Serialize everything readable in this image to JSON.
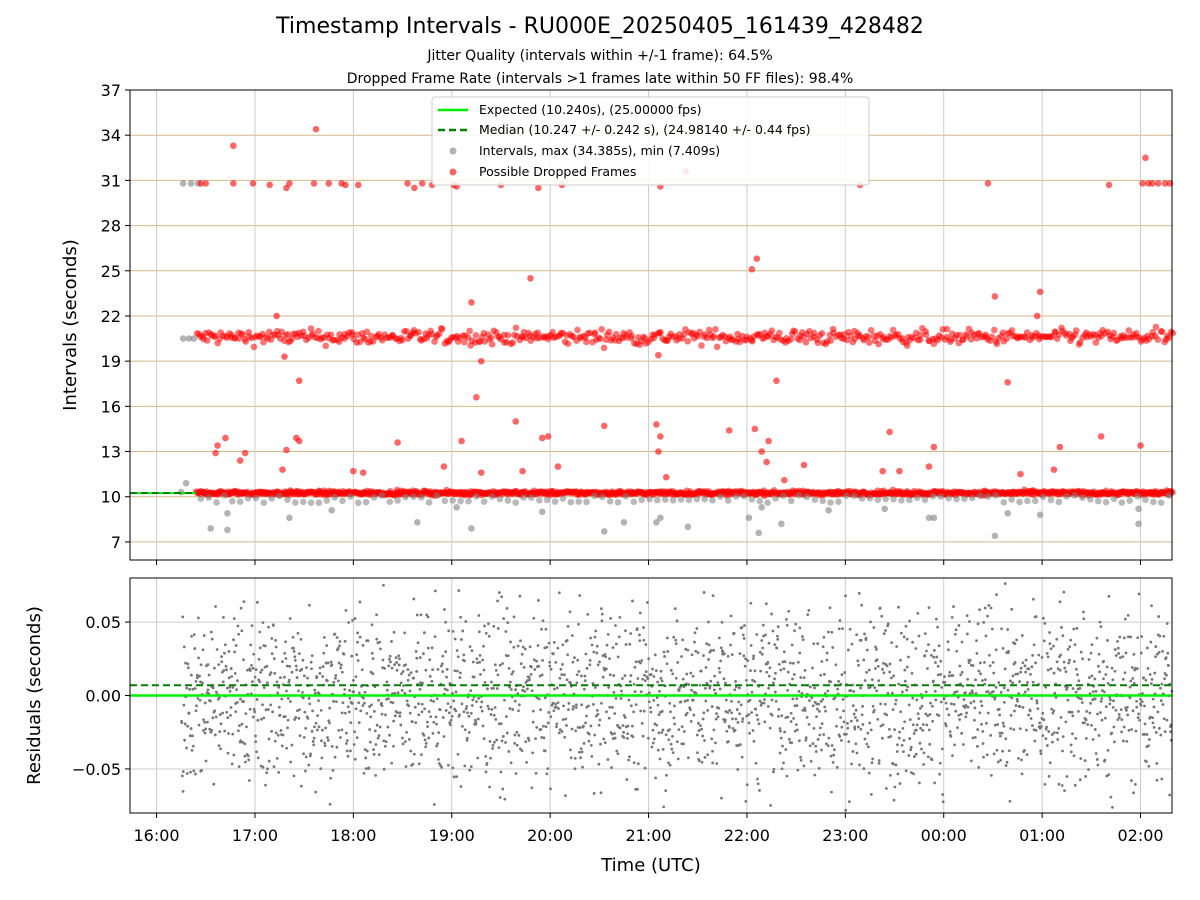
{
  "chart_data": [
    {
      "type": "scatter",
      "title": "Timestamp Intervals - RU000E_20250405_161439_428482",
      "subtitle_lines": [
        "Jitter Quality (intervals within +/-1 frame): 64.5%",
        "Dropped Frame Rate (intervals >1 frames late within 50 FF files): 98.4%"
      ],
      "xlabel": "",
      "ylabel": "Intervals (seconds)",
      "x_range_hours": [
        15.73,
        26.32
      ],
      "ylim": [
        5.8,
        37
      ],
      "yticks": [
        7,
        10,
        13,
        16,
        19,
        22,
        25,
        28,
        31,
        34,
        37
      ],
      "xticks": [
        "16:00",
        "17:00",
        "18:00",
        "19:00",
        "20:00",
        "21:00",
        "22:00",
        "23:00",
        "00:00",
        "01:00",
        "02:00"
      ],
      "grid": "y-lines tan, x-lines gray",
      "legend_position": "top-center",
      "legend": [
        "Expected (10.240s), (25.00000 fps)",
        "Median (10.247 +/- 0.242 s), (24.98140 +/- 0.44 fps)",
        "Intervals, max (34.385s), min (7.409s)",
        "Possible Dropped Frames"
      ],
      "expected_interval": 10.24,
      "median_interval": 10.247,
      "series": [
        {
          "name": "Intervals, max (34.385s), min (7.409s)",
          "color": "#808080",
          "points": [
            [
              16.27,
              30.8
            ],
            [
              16.35,
              30.8
            ],
            [
              16.42,
              30.8
            ],
            [
              16.27,
              20.5
            ],
            [
              16.33,
              20.5
            ],
            [
              16.38,
              20.5
            ],
            [
              16.25,
              10.3
            ],
            [
              16.3,
              10.9
            ],
            [
              16.55,
              7.9
            ],
            [
              16.72,
              7.8
            ],
            [
              16.72,
              8.9
            ],
            [
              17.35,
              8.6
            ],
            [
              17.78,
              9.1
            ],
            [
              18.65,
              8.3
            ],
            [
              19.2,
              7.9
            ],
            [
              19.05,
              9.3
            ],
            [
              19.92,
              9.0
            ],
            [
              20.55,
              7.7
            ],
            [
              20.75,
              8.3
            ],
            [
              21.08,
              8.3
            ],
            [
              21.12,
              8.6
            ],
            [
              21.4,
              8.0
            ],
            [
              22.02,
              8.6
            ],
            [
              22.12,
              7.6
            ],
            [
              22.15,
              9.3
            ],
            [
              22.35,
              8.2
            ],
            [
              22.83,
              9.1
            ],
            [
              23.4,
              9.2
            ],
            [
              23.85,
              8.6
            ],
            [
              23.9,
              8.6
            ],
            [
              24.52,
              7.4
            ],
            [
              24.65,
              8.9
            ],
            [
              24.98,
              8.8
            ],
            [
              25.98,
              9.2
            ],
            [
              25.98,
              8.2
            ]
          ]
        },
        {
          "name": "Possible Dropped Frames",
          "color": "#ff0000",
          "points": [
            [
              16.45,
              30.8
            ],
            [
              16.5,
              30.8
            ],
            [
              16.78,
              30.8
            ],
            [
              16.98,
              30.8
            ],
            [
              17.15,
              30.7
            ],
            [
              17.32,
              30.5
            ],
            [
              17.35,
              30.8
            ],
            [
              17.6,
              30.8
            ],
            [
              17.62,
              34.4
            ],
            [
              17.75,
              30.8
            ],
            [
              17.88,
              30.8
            ],
            [
              17.92,
              30.7
            ],
            [
              18.05,
              30.7
            ],
            [
              18.55,
              30.8
            ],
            [
              18.62,
              30.5
            ],
            [
              18.7,
              30.8
            ],
            [
              18.8,
              30.7
            ],
            [
              19.02,
              30.7
            ],
            [
              19.05,
              30.6
            ],
            [
              19.5,
              30.7
            ],
            [
              19.88,
              30.5
            ],
            [
              20.12,
              30.7
            ],
            [
              21.12,
              30.6
            ],
            [
              21.38,
              31.6
            ],
            [
              23.15,
              30.7
            ],
            [
              24.45,
              30.8
            ],
            [
              25.68,
              30.7
            ],
            [
              26.02,
              30.8
            ],
            [
              26.08,
              30.8
            ],
            [
              26.12,
              30.8
            ],
            [
              26.18,
              30.8
            ],
            [
              26.25,
              30.8
            ],
            [
              26.3,
              30.8
            ],
            [
              26.05,
              32.5
            ],
            [
              16.78,
              33.3
            ],
            [
              17.22,
              22.0
            ],
            [
              17.3,
              19.3
            ],
            [
              17.45,
              17.7
            ],
            [
              19.2,
              22.9
            ],
            [
              19.3,
              19.0
            ],
            [
              19.25,
              16.6
            ],
            [
              19.8,
              24.5
            ],
            [
              21.1,
              19.4
            ],
            [
              22.05,
              25.1
            ],
            [
              22.1,
              25.8
            ],
            [
              22.3,
              17.7
            ],
            [
              24.52,
              23.3
            ],
            [
              24.65,
              17.6
            ],
            [
              24.98,
              23.6
            ],
            [
              24.95,
              22.0
            ],
            [
              16.6,
              12.9
            ],
            [
              16.62,
              13.4
            ],
            [
              16.7,
              13.9
            ],
            [
              16.85,
              12.4
            ],
            [
              16.9,
              12.9
            ],
            [
              17.28,
              11.8
            ],
            [
              17.32,
              13.1
            ],
            [
              17.42,
              13.9
            ],
            [
              17.45,
              13.7
            ],
            [
              18.0,
              11.7
            ],
            [
              18.1,
              11.6
            ],
            [
              18.45,
              13.6
            ],
            [
              18.92,
              12.0
            ],
            [
              19.1,
              13.7
            ],
            [
              19.3,
              11.6
            ],
            [
              19.65,
              15.0
            ],
            [
              19.72,
              11.7
            ],
            [
              19.92,
              13.9
            ],
            [
              19.98,
              14.0
            ],
            [
              20.08,
              12.0
            ],
            [
              20.55,
              14.7
            ],
            [
              21.08,
              14.8
            ],
            [
              21.1,
              13.0
            ],
            [
              21.12,
              14.0
            ],
            [
              21.18,
              11.3
            ],
            [
              21.82,
              14.4
            ],
            [
              22.08,
              14.5
            ],
            [
              22.15,
              13.0
            ],
            [
              22.22,
              13.7
            ],
            [
              22.2,
              12.3
            ],
            [
              22.38,
              11.1
            ],
            [
              22.58,
              12.1
            ],
            [
              23.38,
              11.7
            ],
            [
              23.45,
              14.3
            ],
            [
              23.55,
              11.7
            ],
            [
              23.85,
              12.0
            ],
            [
              23.9,
              13.3
            ],
            [
              24.78,
              11.5
            ],
            [
              25.12,
              11.8
            ],
            [
              25.18,
              13.3
            ],
            [
              25.6,
              14.0
            ],
            [
              26.0,
              13.4
            ]
          ]
        }
      ],
      "bands": [
        {
          "color": "#ff0000",
          "y_center": 20.6,
          "y_spread": 0.55,
          "x_range": [
            16.4,
            26.32
          ]
        },
        {
          "color": "#ff0000",
          "y_center": 10.25,
          "y_spread": 0.15,
          "x_range": [
            16.4,
            26.32
          ]
        }
      ]
    },
    {
      "type": "scatter",
      "ylabel": "Residuals (seconds)",
      "xlabel": "Time (UTC)",
      "ylim": [
        -0.08,
        0.08
      ],
      "yticks": [
        "−0.05",
        "0.00",
        "0.05"
      ],
      "xticks": [
        "16:00",
        "17:00",
        "18:00",
        "19:00",
        "20:00",
        "21:00",
        "22:00",
        "23:00",
        "00:00",
        "01:00",
        "02:00"
      ],
      "expected_line": 0.0,
      "median_line": 0.007,
      "series": [
        {
          "color": "#777777",
          "x_range": [
            16.25,
            26.32
          ],
          "y_range": [
            -0.08,
            0.08
          ]
        }
      ]
    }
  ],
  "colors": {
    "expected": "#00ee00",
    "median": "#008000",
    "interval": "#808080",
    "dropped": "#ff0000",
    "hgrid": "#d2b98c",
    "vgrid": "#cccccc"
  }
}
